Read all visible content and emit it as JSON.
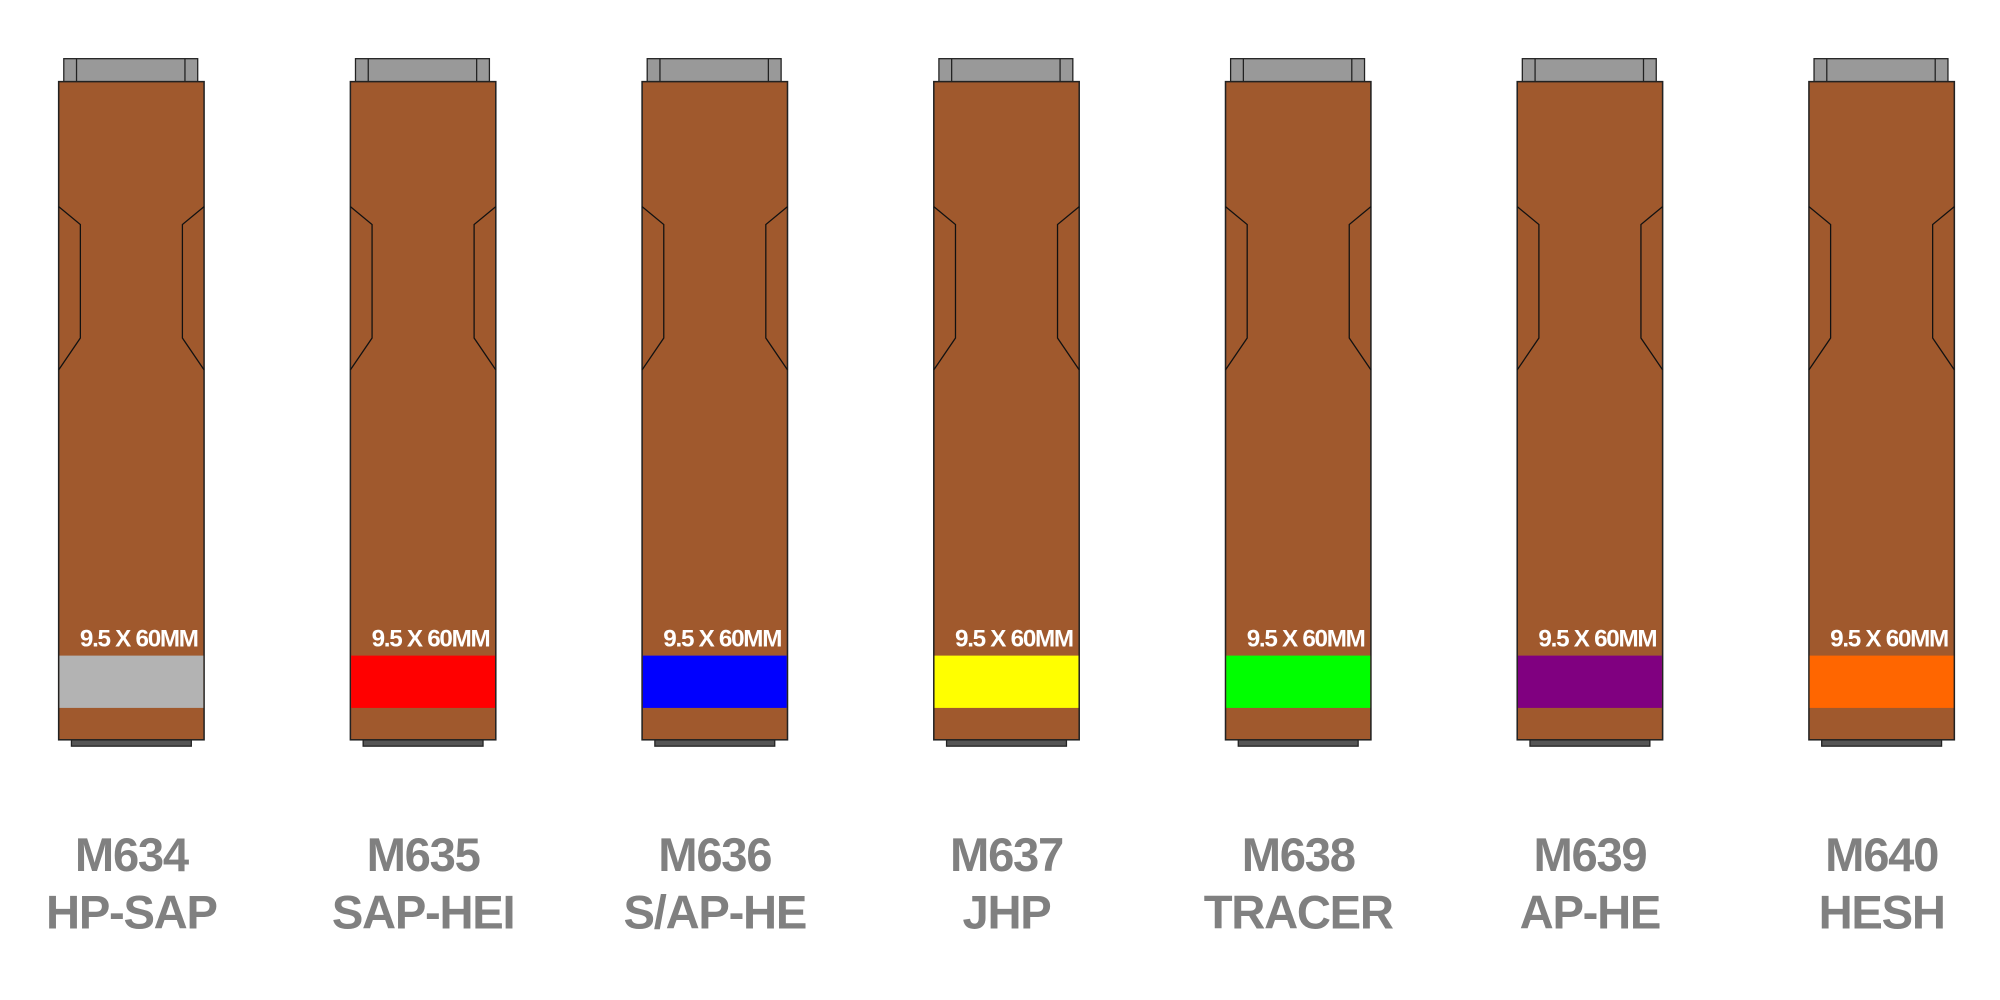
{
  "body_color": "#a0592d",
  "cap_color": "#999999",
  "base_color": "#555555",
  "cartridges": [
    {
      "code": "M634",
      "type": "HP-SAP",
      "spec": "9.5 X 60MM",
      "band_color": "#b3b3b3"
    },
    {
      "code": "M635",
      "type": "SAP-HEI",
      "spec": "9.5 X 60MM",
      "band_color": "#ff0000"
    },
    {
      "code": "M636",
      "type": "S/AP-HE",
      "spec": "9.5 X 60MM",
      "band_color": "#0000ff"
    },
    {
      "code": "M637",
      "type": "JHP",
      "spec": "9.5 X 60MM",
      "band_color": "#ffff00"
    },
    {
      "code": "M638",
      "type": "TRACER",
      "spec": "9.5 X 60MM",
      "band_color": "#00ff00"
    },
    {
      "code": "M639",
      "type": "AP-HE",
      "spec": "9.5 X 60MM",
      "band_color": "#800080"
    },
    {
      "code": "M640",
      "type": "HESH",
      "spec": "9.5 X 60MM",
      "band_color": "#ff6600"
    }
  ]
}
